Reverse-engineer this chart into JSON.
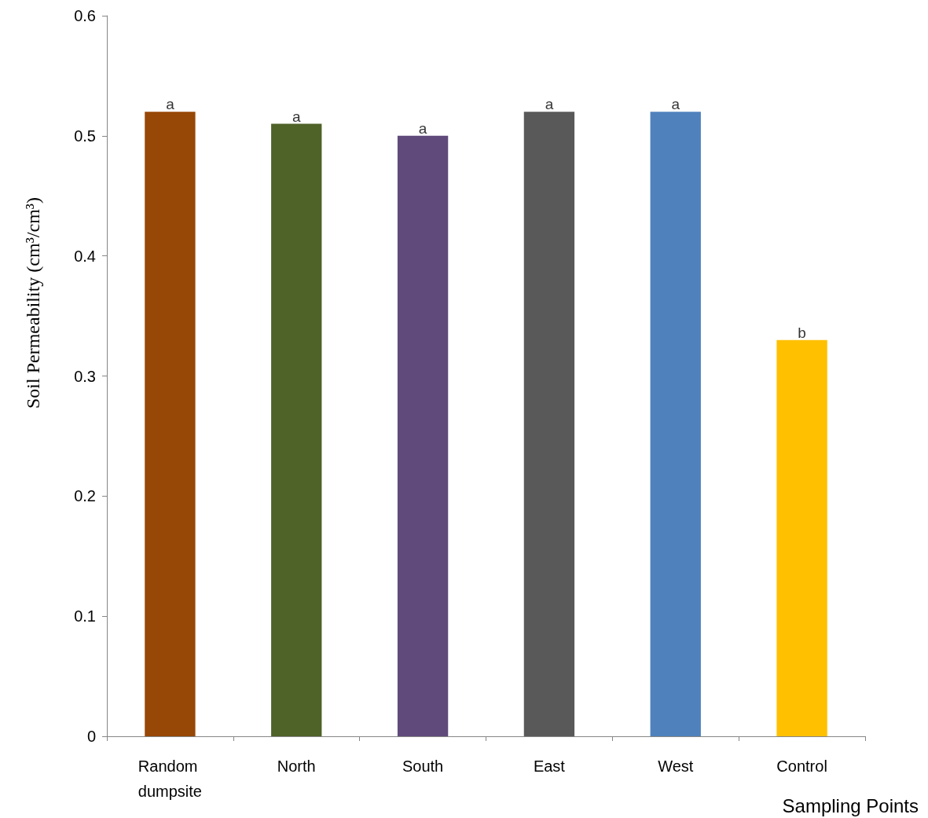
{
  "chart_data": {
    "type": "bar",
    "ylabel": "Soil Permeability (cm³/cm³)",
    "xlabel": "Sampling Points",
    "categories": [
      "Random dumpsite",
      "North",
      "South",
      "East",
      "West",
      "Control"
    ],
    "values": [
      0.52,
      0.51,
      0.5,
      0.52,
      0.52,
      0.33
    ],
    "colors": [
      "#974706",
      "#4f6228",
      "#604a7b",
      "#595959",
      "#4f81bd",
      "#ffc000"
    ],
    "ylim": [
      0,
      0.6
    ],
    "yticks": [
      0,
      0.1,
      0.2,
      0.3,
      0.4,
      0.5,
      0.6
    ],
    "grid": false,
    "annotations": [
      {
        "text": "a",
        "x": "Random dumpsite",
        "y": 0.52
      },
      {
        "text": "a",
        "x": "North",
        "y": 0.51
      },
      {
        "text": "a",
        "x": "South",
        "y": 0.5
      },
      {
        "text": "a",
        "x": "East",
        "y": 0.52
      },
      {
        "text": "a",
        "x": "West",
        "y": 0.52
      },
      {
        "text": "b",
        "x": "Control",
        "y": 0.33
      }
    ]
  }
}
